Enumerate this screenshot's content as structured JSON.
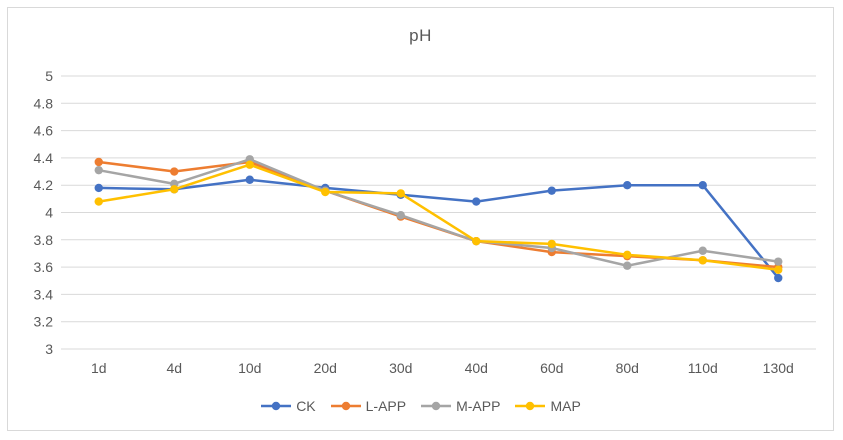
{
  "chart_data": {
    "type": "line",
    "title": "pH",
    "categories": [
      "1d",
      "4d",
      "10d",
      "20d",
      "30d",
      "40d",
      "60d",
      "80d",
      "110d",
      "130d"
    ],
    "series": [
      {
        "name": "CK",
        "color": "#4472C4",
        "values": [
          4.18,
          4.17,
          4.24,
          4.18,
          4.13,
          4.08,
          4.16,
          4.2,
          4.2,
          3.52
        ]
      },
      {
        "name": "L-APP",
        "color": "#ED7D31",
        "values": [
          4.37,
          4.3,
          4.37,
          4.16,
          3.97,
          3.79,
          3.71,
          3.68,
          3.65,
          3.6
        ]
      },
      {
        "name": "M-APP",
        "color": "#A5A5A5",
        "values": [
          4.31,
          4.21,
          4.39,
          4.16,
          3.98,
          3.79,
          3.74,
          3.61,
          3.72,
          3.64
        ]
      },
      {
        "name": "MAP",
        "color": "#FFC000",
        "values": [
          4.08,
          4.17,
          4.35,
          4.15,
          4.14,
          3.79,
          3.77,
          3.69,
          3.65,
          3.58
        ]
      }
    ],
    "ylim": [
      3,
      5
    ],
    "ytick_step": 0.2,
    "ytick_labels": [
      "3",
      "3.2",
      "3.4",
      "3.6",
      "3.8",
      "4",
      "4.2",
      "4.4",
      "4.6",
      "4.8",
      "5"
    ],
    "grid": true,
    "legend_position": "bottom"
  },
  "colors": {
    "axis_text": "#595959",
    "gridline": "#D9D9D9",
    "frame_border": "#D9D9D9",
    "background": "#FFFFFF"
  }
}
